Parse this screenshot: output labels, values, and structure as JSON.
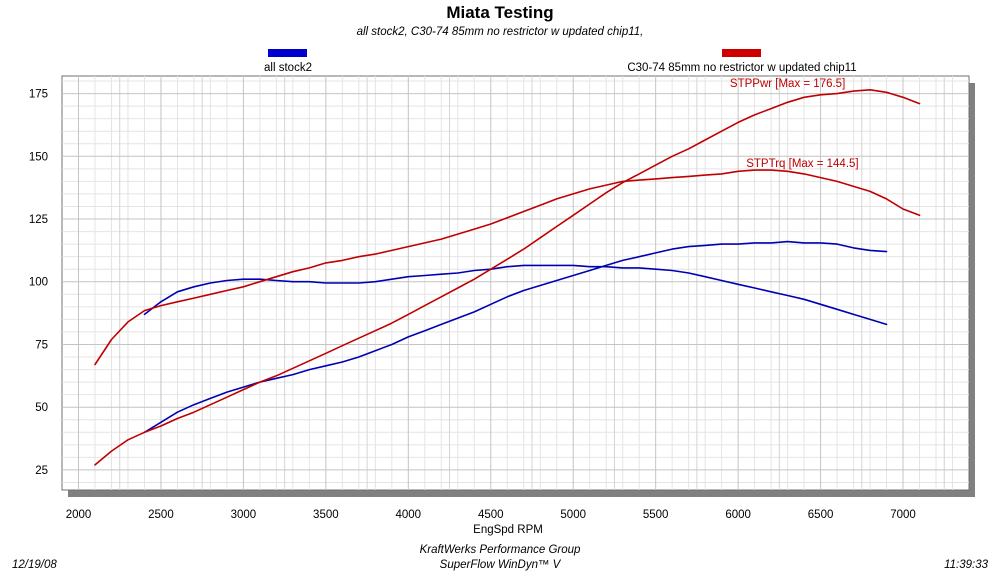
{
  "chart_data": {
    "type": "line",
    "title": "Miata Testing",
    "subtitle": "all stock2, C30-74 85mm no restrictor w  updated chip11,",
    "xlabel": "EngSpd  RPM",
    "ylabel": "",
    "xlim": [
      1900,
      7400
    ],
    "ylim": [
      17,
      182
    ],
    "x_ticks": [
      2000,
      2500,
      3000,
      3500,
      4000,
      4500,
      5000,
      5500,
      6000,
      6500,
      7000
    ],
    "y_ticks": [
      25,
      50,
      75,
      100,
      125,
      150,
      175
    ],
    "grid": true,
    "legend": {
      "placement": "top",
      "entries": [
        {
          "name": "all stock2",
          "color": "#0000cc"
        },
        {
          "name": "C30-74 85mm no restrictor w  updated chip11",
          "color": "#cc0000"
        }
      ]
    },
    "series": [
      {
        "group": "all stock2",
        "color": "#0000b3",
        "x": [
          2400,
          2500,
          2600,
          2700,
          2800,
          2900,
          3000,
          3100,
          3200,
          3300,
          3400,
          3500,
          3600,
          3700,
          3800,
          3900,
          4000,
          4100,
          4200,
          4300,
          4400,
          4500,
          4600,
          4700,
          4800,
          4900,
          5000,
          5100,
          5200,
          5300,
          5400,
          5500,
          5600,
          5700,
          5800,
          5900,
          6000,
          6100,
          6200,
          6300,
          6400,
          6500,
          6600,
          6700,
          6800,
          6900
        ],
        "y": [
          87,
          92,
          96,
          98,
          99.5,
          100.5,
          101,
          101,
          100.5,
          100,
          100,
          99.5,
          99.5,
          99.5,
          100,
          101,
          102,
          102.5,
          103,
          103.5,
          104.5,
          105,
          106,
          106.5,
          106.5,
          106.5,
          106.5,
          106,
          106,
          105.5,
          105.5,
          105,
          104.5,
          103.5,
          102,
          100.5,
          99,
          97.5,
          96,
          94.5,
          93,
          91,
          89,
          87,
          85,
          83
        ]
      },
      {
        "group": "all stock2",
        "color": "#0000b3",
        "x": [
          2400,
          2500,
          2600,
          2700,
          2800,
          2900,
          3000,
          3100,
          3200,
          3300,
          3400,
          3500,
          3600,
          3700,
          3800,
          3900,
          4000,
          4100,
          4200,
          4300,
          4400,
          4500,
          4600,
          4700,
          4800,
          4900,
          5000,
          5100,
          5200,
          5300,
          5400,
          5500,
          5600,
          5700,
          5800,
          5900,
          6000,
          6100,
          6200,
          6300,
          6400,
          6500,
          6600,
          6700,
          6800,
          6900
        ],
        "y": [
          40,
          44,
          48,
          51,
          53.5,
          56,
          58,
          60,
          61.5,
          63,
          65,
          66.5,
          68,
          70,
          72.5,
          75,
          78,
          80.5,
          83,
          85.5,
          88,
          91,
          94,
          96.5,
          98.5,
          100.5,
          102.5,
          104.5,
          106.5,
          108.5,
          110,
          111.5,
          113,
          114,
          114.5,
          115,
          115,
          115.5,
          115.5,
          116,
          115.5,
          115.5,
          115,
          113.5,
          112.5,
          112
        ]
      },
      {
        "name": "STPTrq",
        "color": "#c00000",
        "x": [
          2100,
          2200,
          2300,
          2400,
          2500,
          2600,
          2700,
          2800,
          2900,
          3000,
          3100,
          3200,
          3300,
          3400,
          3500,
          3600,
          3700,
          3800,
          3900,
          4000,
          4100,
          4200,
          4300,
          4400,
          4500,
          4600,
          4700,
          4800,
          4900,
          5000,
          5100,
          5200,
          5300,
          5400,
          5500,
          5600,
          5700,
          5800,
          5900,
          6000,
          6100,
          6200,
          6300,
          6400,
          6500,
          6600,
          6700,
          6800,
          6900,
          7000,
          7100
        ],
        "y": [
          67,
          77,
          84,
          88.5,
          90.5,
          92,
          93.5,
          95,
          96.5,
          98,
          100,
          102,
          104,
          105.5,
          107.5,
          108.5,
          110,
          111,
          112.5,
          114,
          115.5,
          117,
          119,
          121,
          123,
          125.5,
          128,
          130.5,
          133,
          135,
          137,
          138.5,
          140,
          140.5,
          141,
          141.5,
          142,
          142.5,
          143,
          144,
          144.5,
          144.5,
          144,
          143,
          141.5,
          140,
          138,
          136,
          133,
          129,
          126.5
        ]
      },
      {
        "name": "STPPwr",
        "color": "#c00000",
        "x": [
          2100,
          2200,
          2300,
          2400,
          2500,
          2600,
          2700,
          2800,
          2900,
          3000,
          3100,
          3200,
          3300,
          3400,
          3500,
          3600,
          3700,
          3800,
          3900,
          4000,
          4100,
          4200,
          4300,
          4400,
          4500,
          4600,
          4700,
          4800,
          4900,
          5000,
          5100,
          5200,
          5300,
          5400,
          5500,
          5600,
          5700,
          5800,
          5900,
          6000,
          6100,
          6200,
          6300,
          6400,
          6500,
          6600,
          6700,
          6800,
          6900,
          7000,
          7100
        ],
        "y": [
          27,
          32.5,
          37,
          40,
          42.5,
          45.5,
          48,
          51,
          54,
          57,
          60,
          62.5,
          65.5,
          68.5,
          71.5,
          74.5,
          77.5,
          80.5,
          83.5,
          87,
          90.5,
          94,
          97.5,
          101,
          105,
          109,
          113,
          117.5,
          122,
          126.5,
          131,
          135.5,
          139.5,
          143,
          146.5,
          150,
          153,
          156.5,
          160,
          163.5,
          166.5,
          169,
          171.5,
          173.5,
          174.5,
          175,
          176,
          176.5,
          175.5,
          173.5,
          171
        ]
      }
    ],
    "annotations": [
      {
        "text": "STPPwr [Max = 176.5]",
        "x": 6300,
        "y": 176.5
      },
      {
        "text": "STPTrq [Max = 144.5]",
        "x": 6390,
        "y": 144.5
      }
    ]
  },
  "footer": {
    "date": "12/19/08",
    "company": "KraftWerks Performance Group",
    "software": "SuperFlow WinDyn™ V",
    "time": "11:39:33"
  }
}
